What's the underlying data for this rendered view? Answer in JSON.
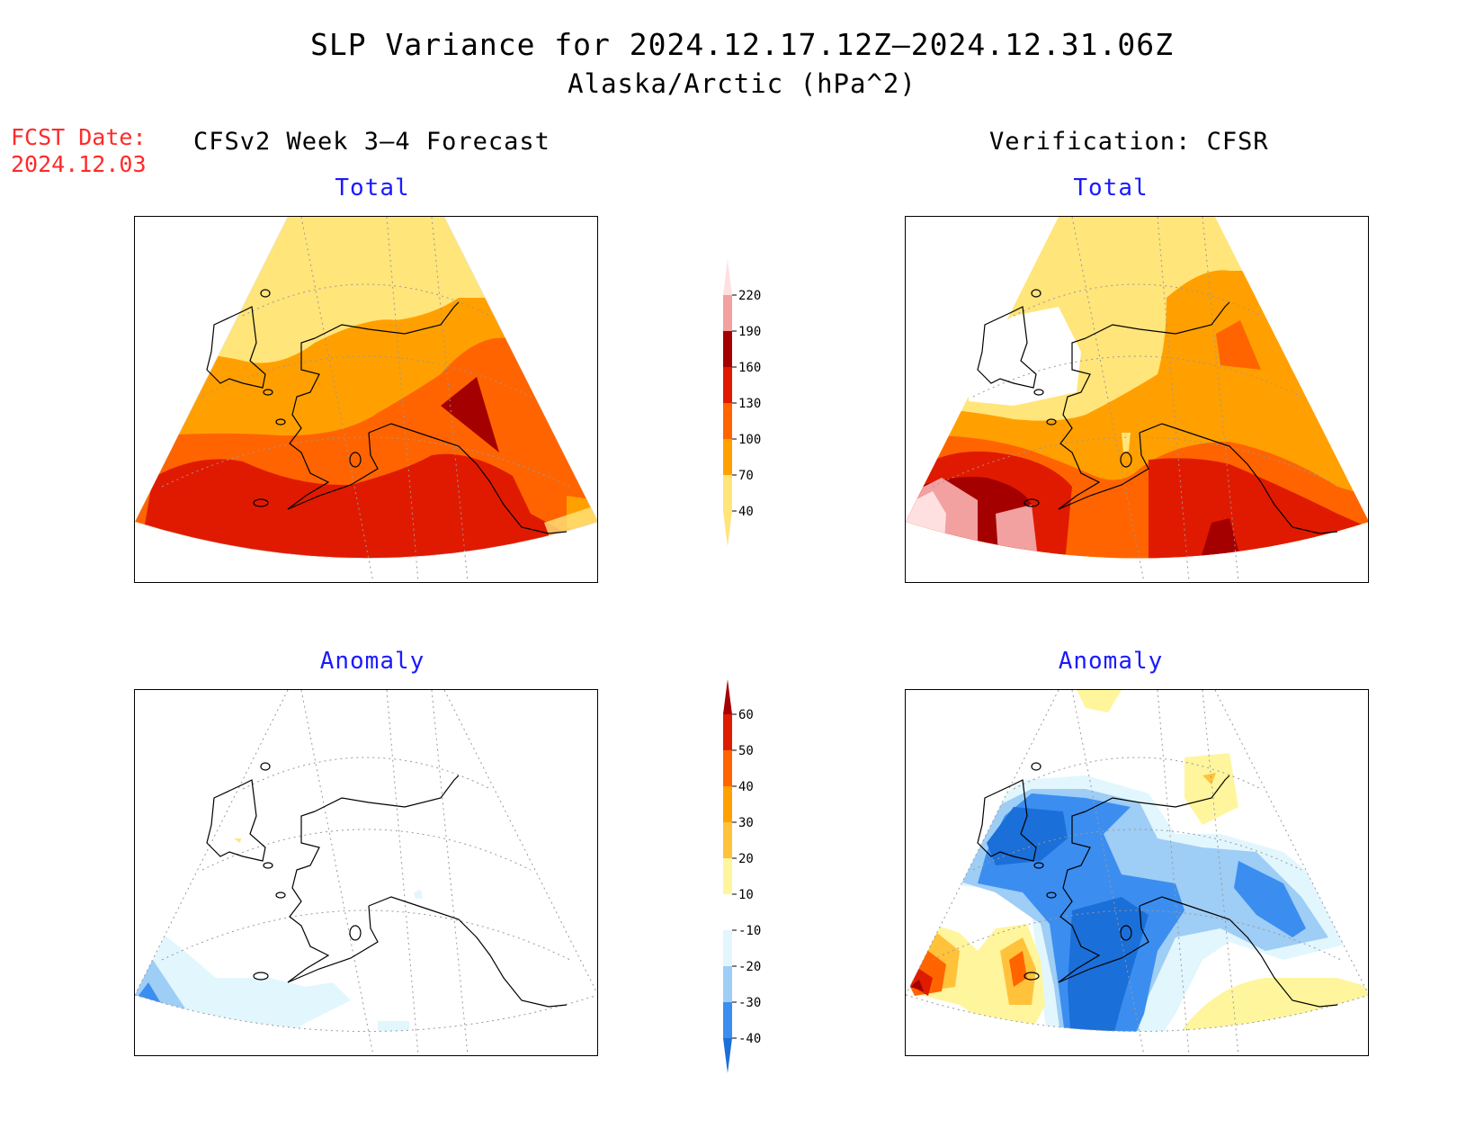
{
  "header": {
    "title": "SLP Variance for 2024.12.17.12Z–2024.12.31.06Z",
    "subtitle": "Alaska/Arctic (hPa^2)",
    "fcst_label": "FCST Date:",
    "fcst_date": "2024.12.03",
    "forecast_heading": "CFSv2 Week 3–4 Forecast",
    "verification_heading": "Verification: CFSR"
  },
  "panels": {
    "forecast_total_title": "Total",
    "verification_total_title": "Total",
    "forecast_anomaly_title": "Anomaly",
    "verification_anomaly_title": "Anomaly"
  },
  "colorbars": {
    "total": {
      "labels": [
        "40",
        "70",
        "100",
        "130",
        "160",
        "190",
        "220"
      ],
      "colors": [
        "#ffe57a",
        "#ffa000",
        "#ff6400",
        "#e01a00",
        "#a50000",
        "#f2a0a0",
        "#ffe0e0"
      ]
    },
    "anomaly": {
      "labels": [
        "-40",
        "-30",
        "-20",
        "-10",
        "10",
        "20",
        "30",
        "40",
        "50",
        "60"
      ],
      "colors": [
        "#1a6fd9",
        "#3b8ef0",
        "#9ecdf5",
        "#e2f6fd",
        "#ffffff",
        "#fff59d",
        "#ffc23a",
        "#ffa000",
        "#ff6400",
        "#dd1c00",
        "#a50000"
      ]
    }
  }
}
